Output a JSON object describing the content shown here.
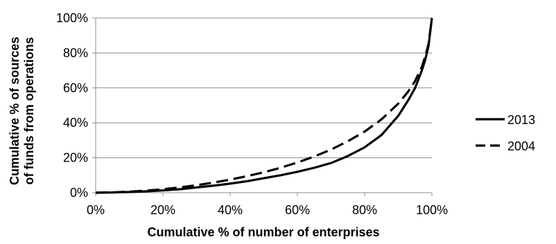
{
  "chart_data": {
    "type": "line",
    "title": "",
    "xlabel": "Cumulative % of number of enterprises",
    "ylabel_lines": [
      "Cumulative % of sources",
      "of funds from operations"
    ],
    "xlim": [
      0,
      100
    ],
    "ylim": [
      0,
      100
    ],
    "x_ticks": [
      0,
      20,
      40,
      60,
      80,
      100
    ],
    "y_ticks": [
      0,
      20,
      40,
      60,
      80,
      100
    ],
    "x_tick_labels": [
      "0%",
      "20%",
      "40%",
      "60%",
      "80%",
      "100%"
    ],
    "y_tick_labels": [
      "0%",
      "20%",
      "40%",
      "60%",
      "80%",
      "100%"
    ],
    "grid": "horizontal",
    "legend_position": "right",
    "series": [
      {
        "name": "2013",
        "style": "solid",
        "color": "#000000",
        "x": [
          0,
          5,
          10,
          15,
          20,
          25,
          30,
          35,
          40,
          45,
          50,
          55,
          60,
          65,
          70,
          75,
          80,
          85,
          90,
          93,
          95,
          97,
          98,
          99,
          100
        ],
        "y": [
          0,
          0.1,
          0.4,
          0.8,
          1.3,
          2,
          3,
          4,
          5.2,
          6.6,
          8.3,
          10,
          12,
          14.3,
          17,
          21,
          26,
          33,
          44,
          53,
          60,
          70,
          76,
          84,
          100
        ]
      },
      {
        "name": "2004",
        "style": "dashed",
        "color": "#000000",
        "x": [
          0,
          5,
          10,
          15,
          20,
          25,
          30,
          35,
          40,
          45,
          50,
          55,
          60,
          65,
          70,
          75,
          80,
          85,
          90,
          93,
          95,
          97,
          98,
          99,
          100
        ],
        "y": [
          0,
          0.2,
          0.6,
          1.2,
          2,
          3,
          4.3,
          5.8,
          7.5,
          9.5,
          11.7,
          14.3,
          17.3,
          20.7,
          24.7,
          29.5,
          35,
          42,
          51,
          58,
          64,
          72,
          78,
          85,
          100
        ]
      }
    ]
  }
}
